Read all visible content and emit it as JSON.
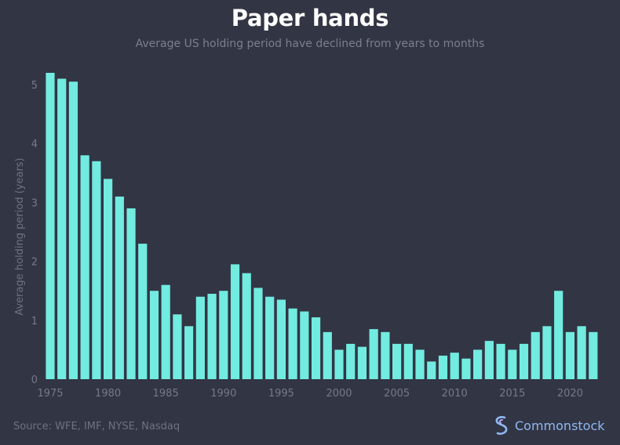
{
  "chart_data": {
    "type": "bar",
    "title": "Paper hands",
    "subtitle": "Average US holding period have declined from years to months",
    "xlabel": "",
    "ylabel": "Average holding period (years)",
    "ylim": [
      0,
      5.2
    ],
    "yticks": [
      0,
      1,
      2,
      3,
      4,
      5
    ],
    "xticks": [
      1975,
      1980,
      1985,
      1990,
      1995,
      2000,
      2005,
      2010,
      2015,
      2020
    ],
    "grid": false,
    "color": "#72ebe0",
    "categories": [
      1975,
      1976,
      1977,
      1978,
      1979,
      1980,
      1981,
      1982,
      1983,
      1984,
      1985,
      1986,
      1987,
      1988,
      1989,
      1990,
      1991,
      1992,
      1993,
      1994,
      1995,
      1996,
      1997,
      1998,
      1999,
      2000,
      2001,
      2002,
      2003,
      2004,
      2005,
      2006,
      2007,
      2008,
      2009,
      2010,
      2011,
      2012,
      2013,
      2014,
      2015,
      2016,
      2017,
      2018,
      2019,
      2020,
      2021,
      2022
    ],
    "values": [
      5.2,
      5.1,
      5.05,
      3.8,
      3.7,
      3.4,
      3.1,
      2.9,
      2.3,
      1.5,
      1.6,
      1.1,
      0.9,
      1.4,
      1.45,
      1.5,
      1.95,
      1.8,
      1.55,
      1.4,
      1.35,
      1.2,
      1.15,
      1.05,
      0.8,
      0.5,
      0.6,
      0.55,
      0.85,
      0.8,
      0.6,
      0.6,
      0.5,
      0.3,
      0.4,
      0.45,
      0.35,
      0.5,
      0.65,
      0.6,
      0.5,
      0.6,
      0.8,
      0.9,
      1.5,
      0.8,
      0.9,
      0.8
    ]
  },
  "footer": {
    "source": "Source: WFE, IMF, NYSE, Nasdaq",
    "brand": "Commonstock"
  },
  "colors": {
    "background": "#323544",
    "bar": "#72ebe0",
    "axis_text": "#75798a",
    "brand": "#8fb8f2"
  }
}
